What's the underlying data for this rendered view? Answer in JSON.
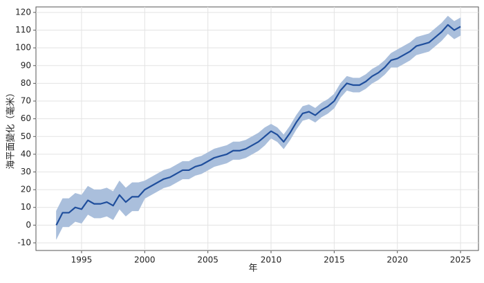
{
  "chart_data": {
    "type": "line",
    "ylabel": "海平面變化（毫米）",
    "xlabel": "年",
    "color": "#1f4e9c",
    "band_color": "#aabfdc",
    "xlim": [
      1991.39,
      2026.42
    ],
    "ylim": [
      -14.3,
      123.1
    ],
    "xticks": [
      1995,
      2000,
      2005,
      2010,
      2015,
      2020,
      2025
    ],
    "yticks": [
      -10,
      0,
      10,
      20,
      30,
      40,
      50,
      60,
      70,
      80,
      90,
      100,
      110,
      120
    ],
    "grid": true,
    "x": [
      1993.0,
      1993.5,
      1994.0,
      1994.5,
      1995.0,
      1995.5,
      1996.0,
      1996.5,
      1997.0,
      1997.5,
      1998.0,
      1998.5,
      1999.0,
      1999.5,
      2000.0,
      2000.5,
      2001.0,
      2001.5,
      2002.0,
      2002.5,
      2003.0,
      2003.5,
      2004.0,
      2004.5,
      2005.0,
      2005.5,
      2006.0,
      2006.5,
      2007.0,
      2007.5,
      2008.0,
      2008.5,
      2009.0,
      2009.5,
      2010.0,
      2010.5,
      2011.0,
      2011.5,
      2012.0,
      2012.5,
      2013.0,
      2013.5,
      2014.0,
      2014.5,
      2015.0,
      2015.5,
      2016.0,
      2016.5,
      2017.0,
      2017.5,
      2018.0,
      2018.5,
      2019.0,
      2019.5,
      2020.0,
      2020.5,
      2021.0,
      2021.5,
      2022.0,
      2022.5,
      2023.0,
      2023.5,
      2024.0,
      2024.5,
      2025.0
    ],
    "values": [
      0,
      7,
      7,
      10,
      9,
      14,
      12,
      12,
      13,
      11,
      17,
      13,
      16,
      16,
      20,
      22,
      24,
      26,
      27,
      29,
      31,
      31,
      33,
      34,
      36,
      38,
      39,
      40,
      42,
      42,
      43,
      45,
      47,
      50,
      53,
      51,
      47,
      52,
      58,
      63,
      64,
      62,
      65,
      67,
      70,
      76,
      80,
      79,
      79,
      81,
      84,
      86,
      89,
      93,
      94,
      96,
      98,
      101,
      102,
      103,
      106,
      109,
      113,
      110,
      112
    ],
    "lower": [
      -8,
      -1,
      -1,
      2,
      1,
      6,
      4,
      4,
      5,
      3,
      9,
      5,
      8,
      8,
      15,
      17,
      19,
      21,
      22,
      24,
      26,
      26,
      28,
      29,
      31,
      33,
      34,
      35,
      37,
      37,
      38,
      40,
      42,
      45,
      49,
      47,
      43,
      48,
      54,
      59,
      60,
      58,
      61,
      63,
      66,
      72,
      76,
      75,
      75,
      77,
      80,
      82,
      85,
      89,
      89,
      91,
      93,
      96,
      97,
      98,
      101,
      104,
      108,
      105,
      107
    ],
    "upper": [
      8,
      15,
      15,
      18,
      17,
      22,
      20,
      20,
      21,
      19,
      25,
      21,
      24,
      24,
      25,
      27,
      29,
      31,
      32,
      34,
      36,
      36,
      38,
      39,
      41,
      43,
      44,
      45,
      47,
      47,
      48,
      50,
      52,
      55,
      57,
      55,
      51,
      56,
      62,
      67,
      68,
      66,
      69,
      71,
      74,
      80,
      84,
      83,
      83,
      85,
      88,
      90,
      93,
      97,
      99,
      101,
      103,
      106,
      107,
      108,
      111,
      114,
      118,
      115,
      117
    ]
  }
}
